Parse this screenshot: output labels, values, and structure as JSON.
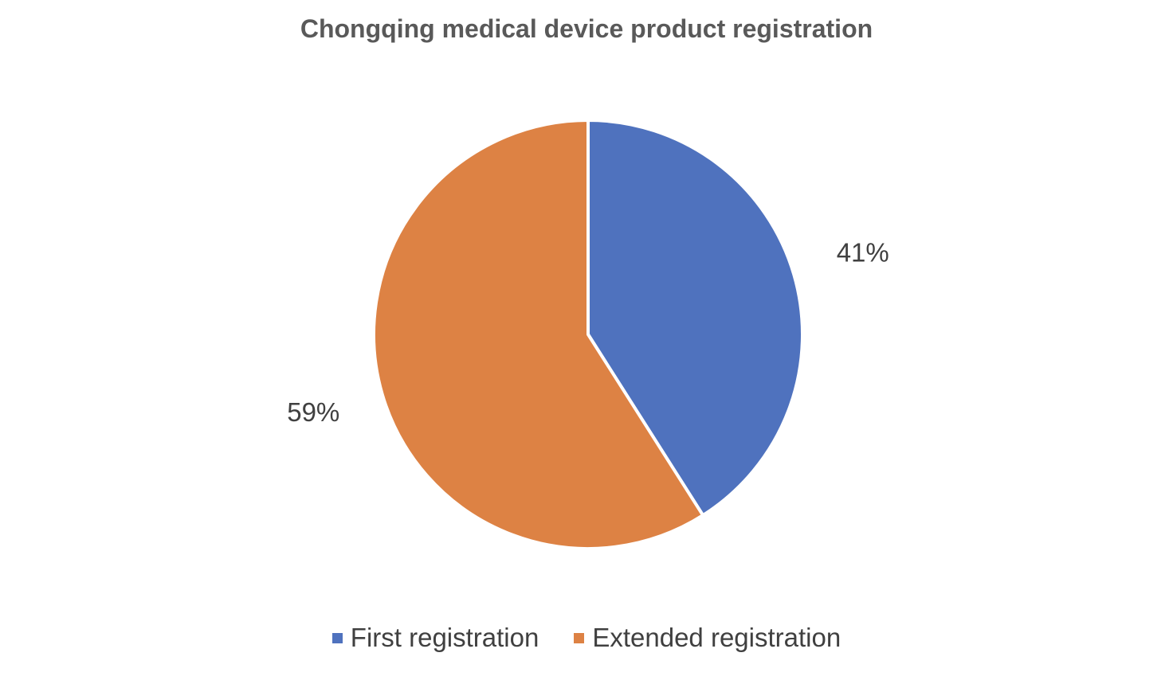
{
  "chart_data": {
    "type": "pie",
    "title": "Chongqing medical device product registration",
    "slices": [
      {
        "name": "First registration",
        "value": 41,
        "label": "41%",
        "color": "#4F72BE"
      },
      {
        "name": "Extended registration",
        "value": 59,
        "label": "59%",
        "color": "#DD8244"
      }
    ],
    "start_angle_deg": 0,
    "direction": "clockwise",
    "legend_position": "bottom"
  }
}
